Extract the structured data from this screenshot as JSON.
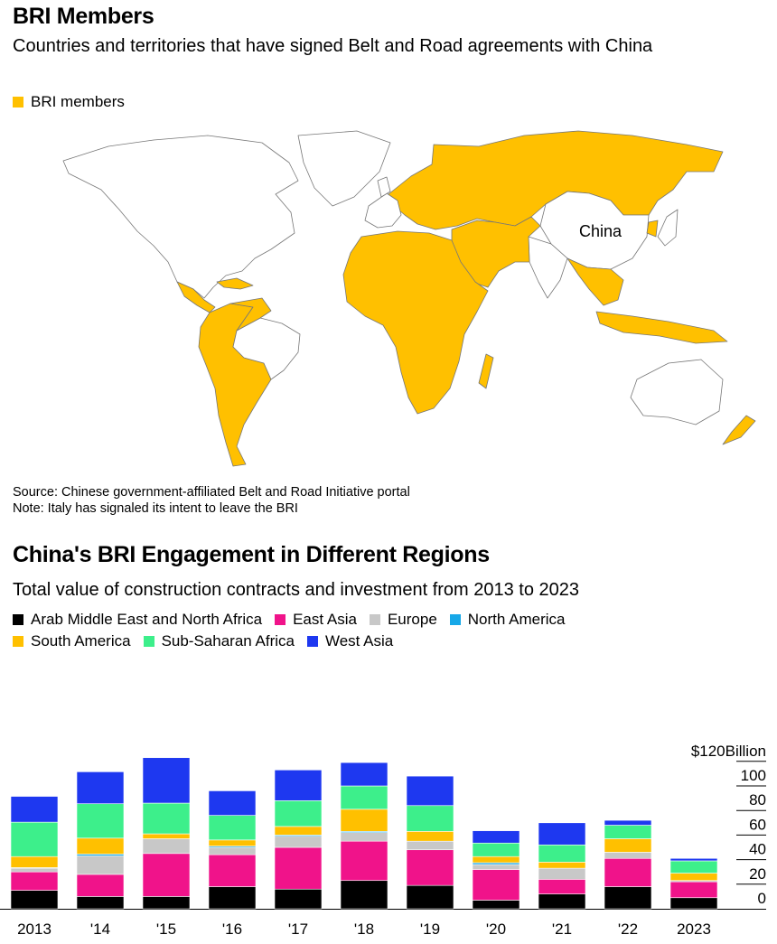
{
  "map": {
    "title": "BRI Members",
    "subtitle": "Countries and territories that have signed Belt and Road agreements with China",
    "legend_label": "BRI members",
    "china_label": "China",
    "source": "Source: Chinese government-affiliated Belt and Road Initiative portal",
    "note": "Note: Italy has signaled its intent to leave the BRI",
    "colors": {
      "member": "#ffc000",
      "land": "#ffffff",
      "border": "#777777"
    }
  },
  "chart_data": {
    "type": "bar",
    "stacked": true,
    "title": "China's BRI Engagement in Different Regions",
    "subtitle": "Total value of construction contracts and investment from 2013 to 2023",
    "unit_label": "$120Billion",
    "ylim": [
      0,
      120
    ],
    "yticks": [
      0,
      20,
      40,
      60,
      80,
      100,
      120
    ],
    "ytick_labels": [
      "0",
      "20",
      "40",
      "60",
      "80",
      "100",
      "$120Billion"
    ],
    "categories": [
      "2013",
      "'14",
      "'15",
      "'16",
      "'17",
      "'18",
      "'19",
      "'20",
      "'21",
      "'22",
      "2023"
    ],
    "series": [
      {
        "name": "Arab Middle East and North Africa",
        "color": "#000000",
        "values": [
          15,
          10,
          10,
          18,
          16,
          23,
          19,
          7,
          12,
          18,
          9
        ]
      },
      {
        "name": "East Asia",
        "color": "#f0138a",
        "values": [
          15,
          18,
          35,
          26,
          34,
          32,
          29,
          25,
          12,
          23,
          13
        ]
      },
      {
        "name": "Europe",
        "color": "#c8c8c8",
        "values": [
          3,
          15,
          12,
          6,
          9,
          7,
          7,
          4,
          9,
          5,
          1
        ]
      },
      {
        "name": "North America",
        "color": "#17a8e8",
        "values": [
          0.5,
          1.5,
          0,
          1,
          1,
          1,
          0,
          1.5,
          0,
          0,
          0
        ]
      },
      {
        "name": "South America",
        "color": "#ffc000",
        "values": [
          9,
          13,
          4,
          5,
          7,
          18,
          8,
          5,
          5,
          11,
          6
        ]
      },
      {
        "name": "Sub-Saharan Africa",
        "color": "#3def8b",
        "values": [
          28,
          28,
          25,
          20,
          21,
          19,
          21,
          11,
          14,
          11,
          10
        ]
      },
      {
        "name": "West Asia",
        "color": "#1e38f0",
        "values": [
          21,
          26,
          37,
          20,
          25,
          19,
          24,
          10,
          18,
          4,
          2
        ]
      }
    ]
  }
}
